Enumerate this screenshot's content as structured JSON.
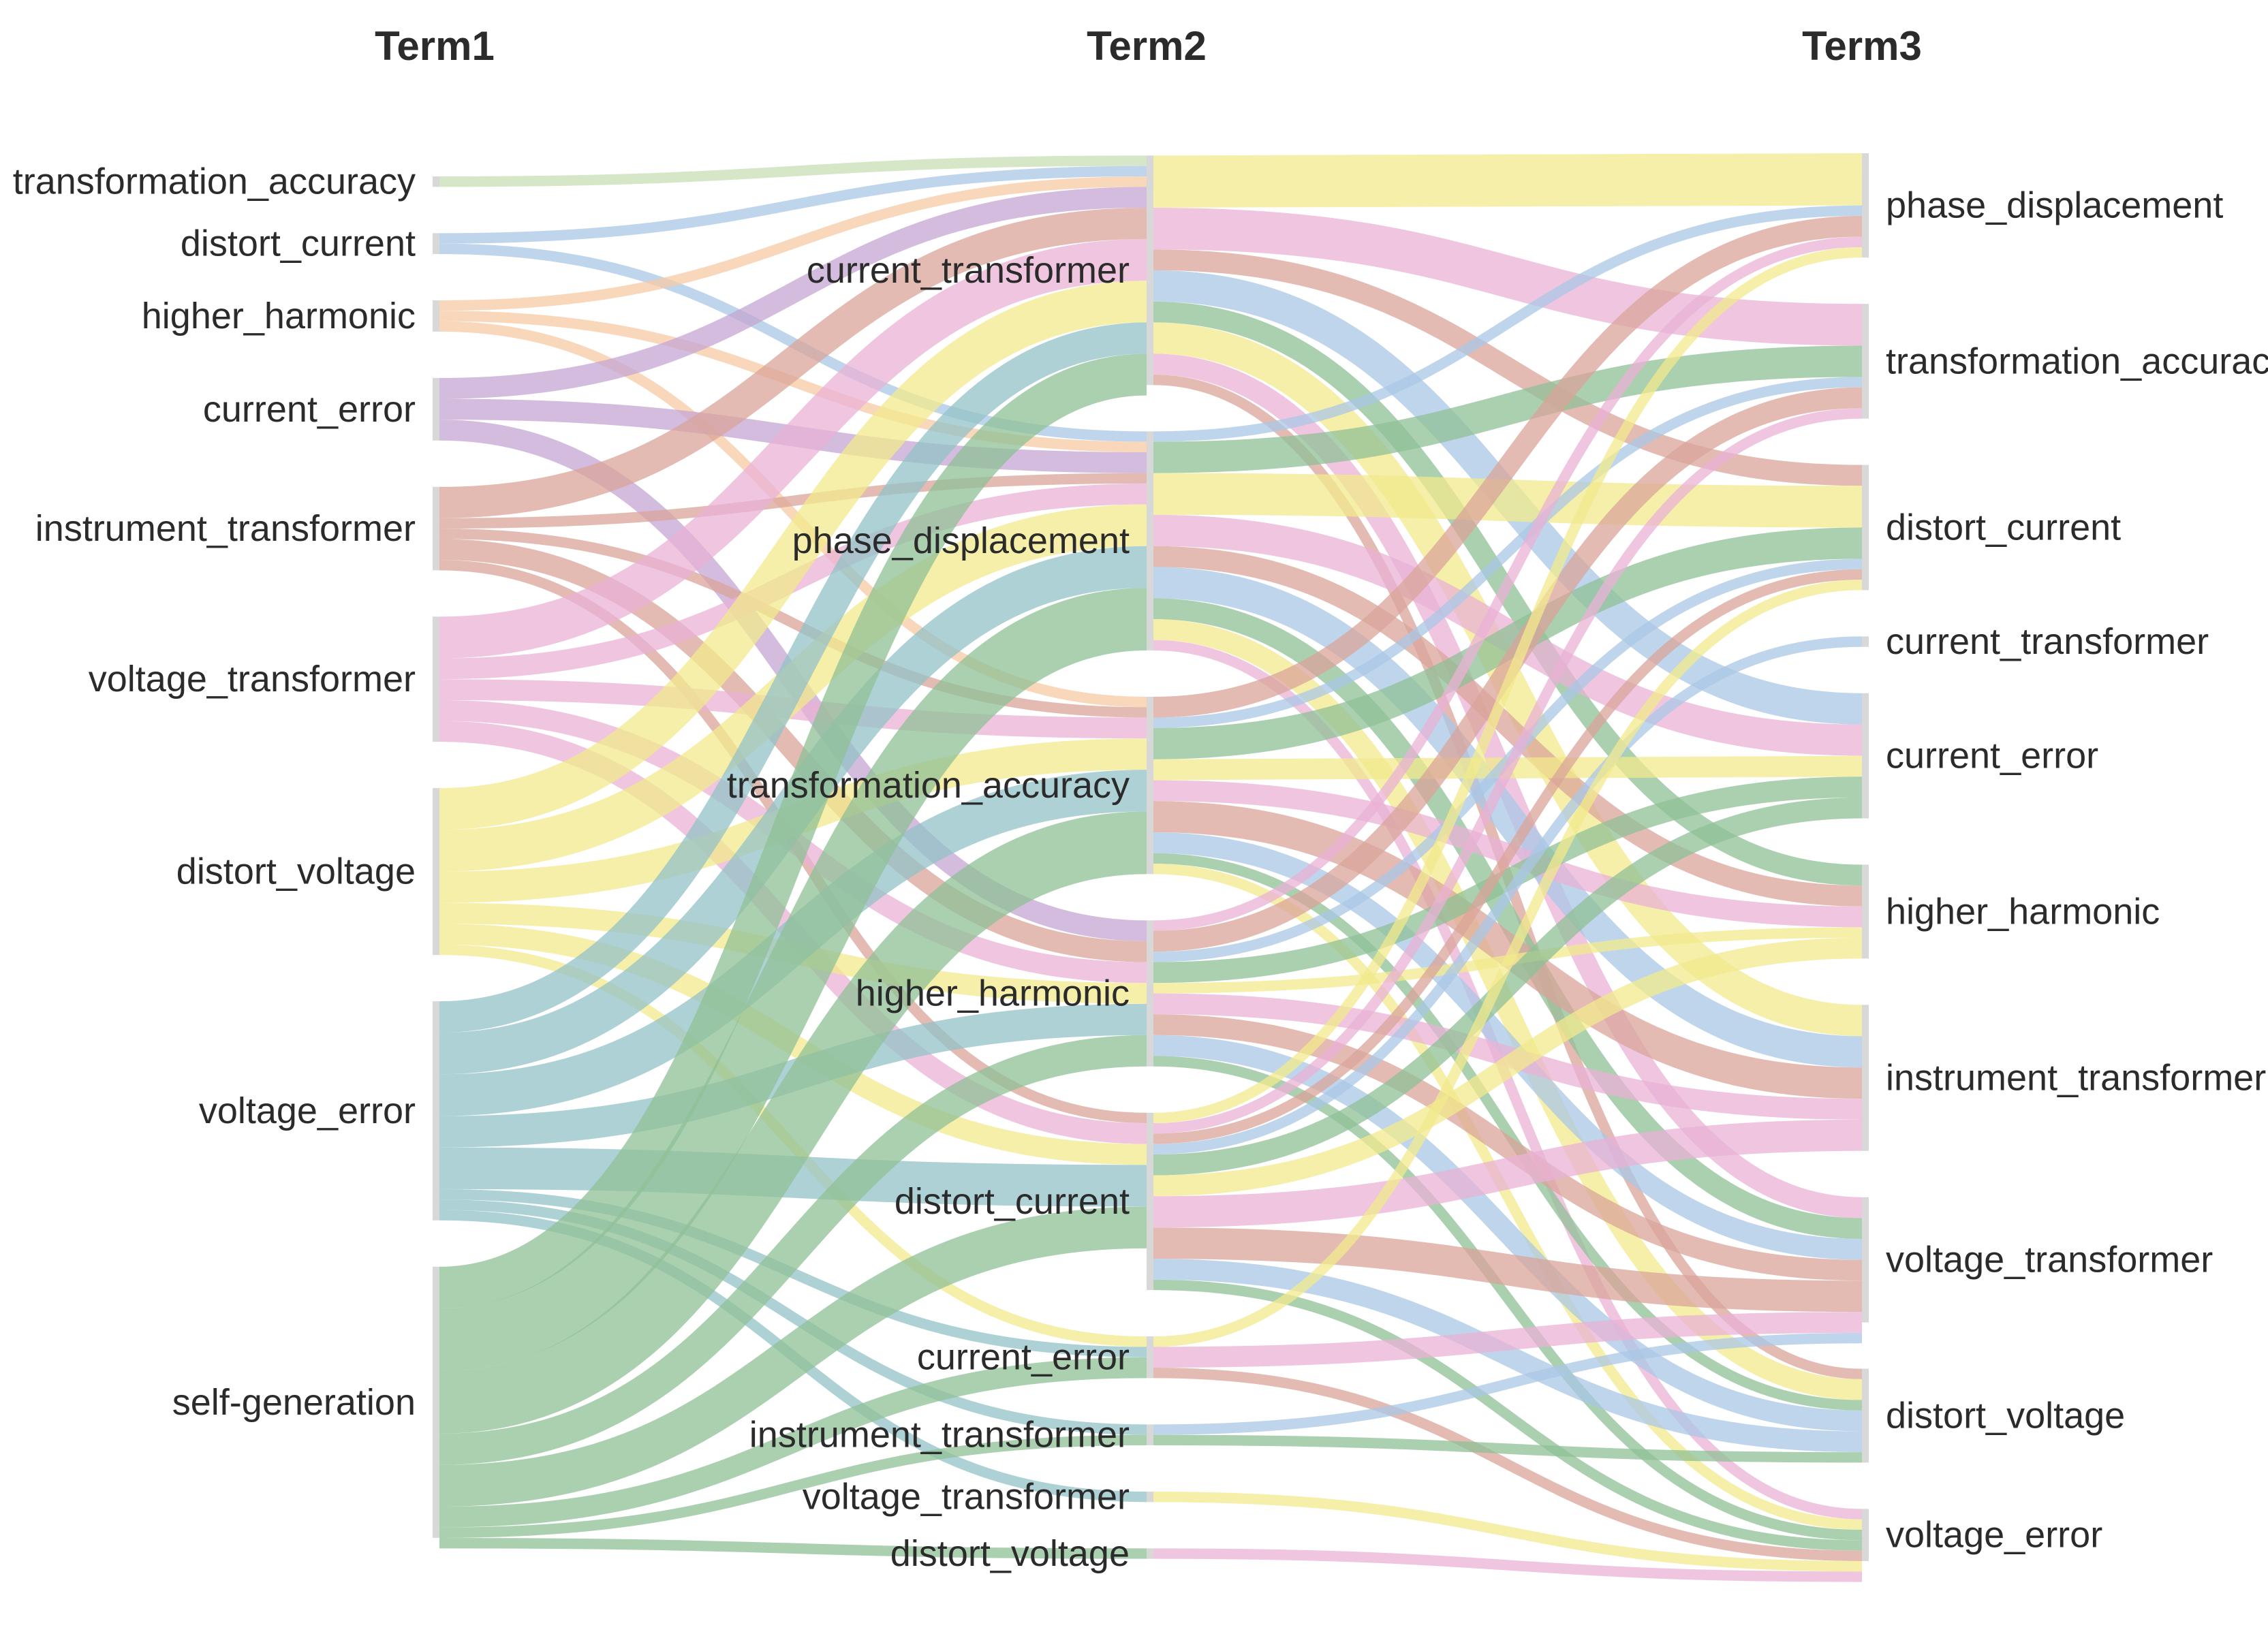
{
  "diagram": {
    "type": "sankey",
    "columns": [
      {
        "title": "Term1",
        "nodes": [
          {
            "label": "transformation_accuracy",
            "value": 1
          },
          {
            "label": "distort_current",
            "value": 2
          },
          {
            "label": "higher_harmonic",
            "value": 3
          },
          {
            "label": "current_error",
            "value": 6
          },
          {
            "label": "instrument_transformer",
            "value": 8
          },
          {
            "label": "voltage_transformer",
            "value": 12
          },
          {
            "label": "distort_voltage",
            "value": 16
          },
          {
            "label": "voltage_error",
            "value": 21
          },
          {
            "label": "self-generation",
            "value": 26
          }
        ]
      },
      {
        "title": "Term2",
        "nodes": [
          {
            "label": "current_transformer",
            "value": 22
          },
          {
            "label": "phase_displacement",
            "value": 21
          },
          {
            "label": "transformation_accuracy",
            "value": 17
          },
          {
            "label": "higher_harmonic",
            "value": 14
          },
          {
            "label": "distort_current",
            "value": 17
          },
          {
            "label": "current_error",
            "value": 4
          },
          {
            "label": "instrument_transformer",
            "value": 2
          },
          {
            "label": "voltage_transformer",
            "value": 1
          },
          {
            "label": "distort_voltage",
            "value": 1
          }
        ]
      },
      {
        "title": "Term3",
        "nodes": [
          {
            "label": "phase_displacement",
            "value": 10
          },
          {
            "label": "transformation_accuracy",
            "value": 11
          },
          {
            "label": "distort_current",
            "value": 12
          },
          {
            "label": "current_transformer",
            "value": 1
          },
          {
            "label": "current_error",
            "value": 12
          },
          {
            "label": "higher_harmonic",
            "value": 9
          },
          {
            "label": "instrument_transformer",
            "value": 14
          },
          {
            "label": "voltage_transformer",
            "value": 12
          },
          {
            "label": "distort_voltage",
            "value": 9
          },
          {
            "label": "voltage_error",
            "value": 5
          }
        ]
      }
    ],
    "colors": {
      "transformation_accuracy": "#c7dfb4",
      "distort_current": "#a9c7e6",
      "higher_harmonic": "#f7c9a4",
      "current_error": "#c4a6d2",
      "instrument_transformer": "#d9a49a",
      "voltage_transformer": "#e9b1d6",
      "distort_voltage": "#f2e98c",
      "voltage_error": "#93c2c7",
      "self-generation": "#8fc096"
    },
    "flows": [
      {
        "source": "transformation_accuracy",
        "target": "current_transformer",
        "value": 1
      },
      {
        "source": "distort_current",
        "target": "current_transformer",
        "value": 1
      },
      {
        "source": "distort_current",
        "target": "phase_displacement",
        "value": 1
      },
      {
        "source": "higher_harmonic",
        "target": "current_transformer",
        "value": 1
      },
      {
        "source": "higher_harmonic",
        "target": "phase_displacement",
        "value": 1
      },
      {
        "source": "higher_harmonic",
        "target": "transformation_accuracy",
        "value": 1
      },
      {
        "source": "current_error",
        "target": "current_transformer",
        "value": 2
      },
      {
        "source": "current_error",
        "target": "phase_displacement",
        "value": 2
      },
      {
        "source": "current_error",
        "target": "higher_harmonic",
        "value": 2
      },
      {
        "source": "instrument_transformer",
        "target": "current_transformer",
        "value": 3
      },
      {
        "source": "instrument_transformer",
        "target": "phase_displacement",
        "value": 1
      },
      {
        "source": "instrument_transformer",
        "target": "transformation_accuracy",
        "value": 1
      },
      {
        "source": "instrument_transformer",
        "target": "higher_harmonic",
        "value": 2
      },
      {
        "source": "instrument_transformer",
        "target": "distort_current",
        "value": 1
      },
      {
        "source": "voltage_transformer",
        "target": "current_transformer",
        "value": 4
      },
      {
        "source": "voltage_transformer",
        "target": "phase_displacement",
        "value": 2
      },
      {
        "source": "voltage_transformer",
        "target": "transformation_accuracy",
        "value": 2
      },
      {
        "source": "voltage_transformer",
        "target": "higher_harmonic",
        "value": 2
      },
      {
        "source": "voltage_transformer",
        "target": "distort_current",
        "value": 2
      },
      {
        "source": "distort_voltage",
        "target": "current_transformer",
        "value": 4
      },
      {
        "source": "distort_voltage",
        "target": "phase_displacement",
        "value": 4
      },
      {
        "source": "distort_voltage",
        "target": "transformation_accuracy",
        "value": 3
      },
      {
        "source": "distort_voltage",
        "target": "higher_harmonic",
        "value": 2
      },
      {
        "source": "distort_voltage",
        "target": "distort_current",
        "value": 2
      },
      {
        "source": "distort_voltage",
        "target": "current_error",
        "value": 1
      },
      {
        "source": "voltage_error",
        "target": "current_transformer",
        "value": 3
      },
      {
        "source": "voltage_error",
        "target": "phase_displacement",
        "value": 4
      },
      {
        "source": "voltage_error",
        "target": "transformation_accuracy",
        "value": 4
      },
      {
        "source": "voltage_error",
        "target": "higher_harmonic",
        "value": 3
      },
      {
        "source": "voltage_error",
        "target": "distort_current",
        "value": 4
      },
      {
        "source": "voltage_error",
        "target": "current_error",
        "value": 1
      },
      {
        "source": "voltage_error",
        "target": "instrument_transformer",
        "value": 1
      },
      {
        "source": "voltage_error",
        "target": "voltage_transformer",
        "value": 1
      },
      {
        "source": "self-generation",
        "target": "current_transformer",
        "value": 4
      },
      {
        "source": "self-generation",
        "target": "phase_displacement",
        "value": 6
      },
      {
        "source": "self-generation",
        "target": "transformation_accuracy",
        "value": 6
      },
      {
        "source": "self-generation",
        "target": "higher_harmonic",
        "value": 3
      },
      {
        "source": "self-generation",
        "target": "distort_current",
        "value": 4
      },
      {
        "source": "self-generation",
        "target": "current_error",
        "value": 2
      },
      {
        "source": "self-generation",
        "target": "instrument_transformer",
        "value": 1
      },
      {
        "source": "self-generation",
        "target": "distort_voltage",
        "value": 1
      },
      {
        "source": "current_transformer",
        "target": "phase_displacement",
        "value": 5
      },
      {
        "source": "current_transformer",
        "target": "transformation_accuracy",
        "value": 4
      },
      {
        "source": "current_transformer",
        "target": "distort_current",
        "value": 2
      },
      {
        "source": "current_transformer",
        "target": "current_error",
        "value": 3
      },
      {
        "source": "current_transformer",
        "target": "higher_harmonic",
        "value": 2
      },
      {
        "source": "current_transformer",
        "target": "instrument_transformer",
        "value": 3
      },
      {
        "source": "current_transformer",
        "target": "voltage_transformer",
        "value": 2
      },
      {
        "source": "current_transformer",
        "target": "distort_voltage",
        "value": 1
      },
      {
        "source": "phase_displacement",
        "target": "phase_displacement",
        "value": 1
      },
      {
        "source": "phase_displacement",
        "target": "transformation_accuracy",
        "value": 3
      },
      {
        "source": "phase_displacement",
        "target": "distort_current",
        "value": 4
      },
      {
        "source": "phase_displacement",
        "target": "current_error",
        "value": 3
      },
      {
        "source": "phase_displacement",
        "target": "higher_harmonic",
        "value": 2
      },
      {
        "source": "phase_displacement",
        "target": "instrument_transformer",
        "value": 3
      },
      {
        "source": "phase_displacement",
        "target": "voltage_transformer",
        "value": 2
      },
      {
        "source": "phase_displacement",
        "target": "distort_voltage",
        "value": 2
      },
      {
        "source": "phase_displacement",
        "target": "voltage_error",
        "value": 1
      },
      {
        "source": "transformation_accuracy",
        "target": "phase_displacement",
        "value": 2
      },
      {
        "source": "transformation_accuracy",
        "target": "transformation_accuracy",
        "value": 1
      },
      {
        "source": "transformation_accuracy",
        "target": "distort_current",
        "value": 3
      },
      {
        "source": "transformation_accuracy",
        "target": "current_error",
        "value": 2
      },
      {
        "source": "transformation_accuracy",
        "target": "higher_harmonic",
        "value": 2
      },
      {
        "source": "transformation_accuracy",
        "target": "instrument_transformer",
        "value": 3
      },
      {
        "source": "transformation_accuracy",
        "target": "voltage_transformer",
        "value": 2
      },
      {
        "source": "transformation_accuracy",
        "target": "distort_voltage",
        "value": 1
      },
      {
        "source": "transformation_accuracy",
        "target": "voltage_error",
        "value": 1
      },
      {
        "source": "higher_harmonic",
        "target": "phase_displacement",
        "value": 1
      },
      {
        "source": "higher_harmonic",
        "target": "transformation_accuracy",
        "value": 2
      },
      {
        "source": "higher_harmonic",
        "target": "distort_current",
        "value": 1
      },
      {
        "source": "higher_harmonic",
        "target": "current_error",
        "value": 2
      },
      {
        "source": "higher_harmonic",
        "target": "higher_harmonic",
        "value": 1
      },
      {
        "source": "higher_harmonic",
        "target": "instrument_transformer",
        "value": 2
      },
      {
        "source": "higher_harmonic",
        "target": "voltage_transformer",
        "value": 2
      },
      {
        "source": "higher_harmonic",
        "target": "distort_voltage",
        "value": 2
      },
      {
        "source": "higher_harmonic",
        "target": "voltage_error",
        "value": 1
      },
      {
        "source": "distort_current",
        "target": "phase_displacement",
        "value": 1
      },
      {
        "source": "distort_current",
        "target": "transformation_accuracy",
        "value": 1
      },
      {
        "source": "distort_current",
        "target": "distort_current",
        "value": 1
      },
      {
        "source": "distort_current",
        "target": "current_transformer",
        "value": 1
      },
      {
        "source": "distort_current",
        "target": "current_error",
        "value": 2
      },
      {
        "source": "distort_current",
        "target": "higher_harmonic",
        "value": 2
      },
      {
        "source": "distort_current",
        "target": "instrument_transformer",
        "value": 3
      },
      {
        "source": "distort_current",
        "target": "voltage_transformer",
        "value": 3
      },
      {
        "source": "distort_current",
        "target": "distort_voltage",
        "value": 2
      },
      {
        "source": "distort_current",
        "target": "voltage_error",
        "value": 1
      },
      {
        "source": "current_error",
        "target": "distort_current",
        "value": 1
      },
      {
        "source": "current_error",
        "target": "voltage_transformer",
        "value": 2
      },
      {
        "source": "current_error",
        "target": "voltage_error",
        "value": 1
      },
      {
        "source": "instrument_transformer",
        "target": "voltage_transformer",
        "value": 1
      },
      {
        "source": "instrument_transformer",
        "target": "distort_voltage",
        "value": 1
      },
      {
        "source": "voltage_transformer",
        "target": "voltage_error",
        "value": 1
      },
      {
        "source": "distort_voltage",
        "target": "voltage_error",
        "value": 1
      }
    ]
  }
}
